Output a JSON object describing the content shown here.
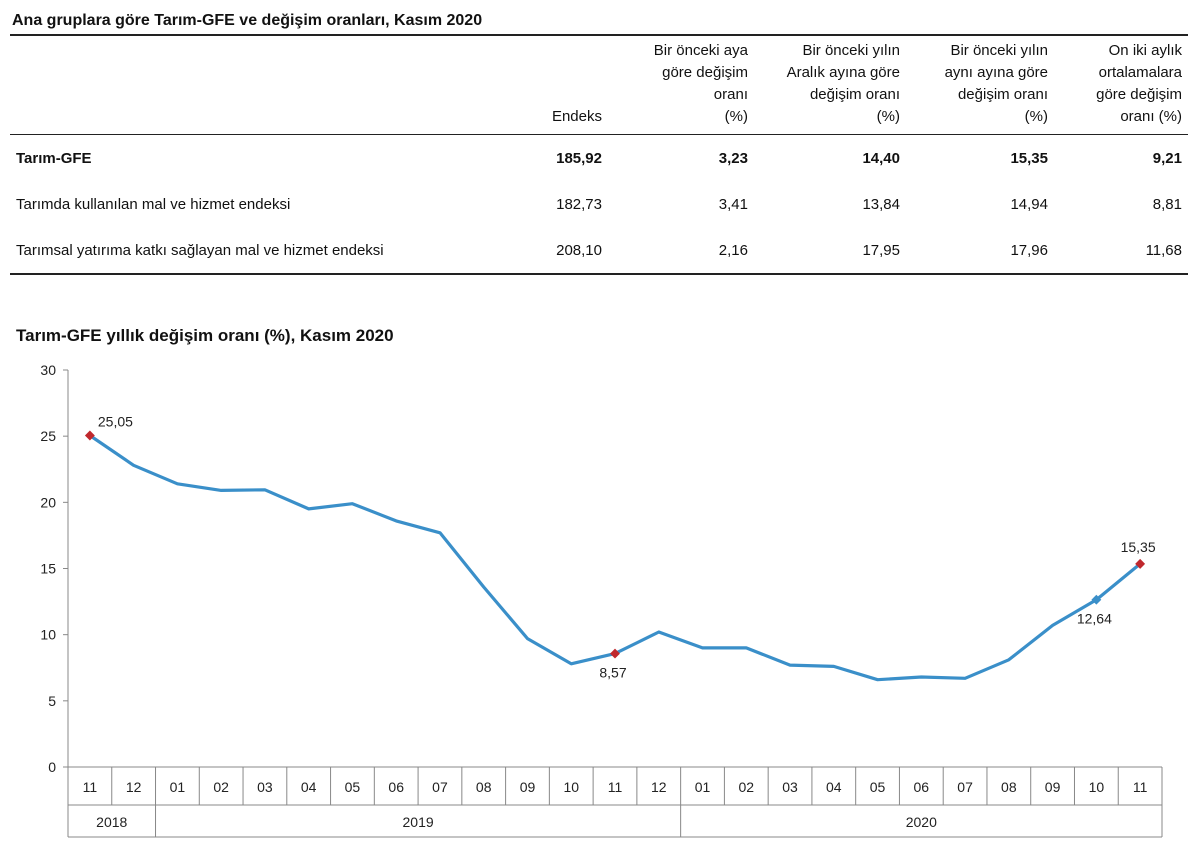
{
  "table": {
    "title": "Ana gruplara göre Tarım-GFE ve değişim oranları, Kasım 2020",
    "headers": [
      "",
      "Endeks",
      "Bir önceki aya\ngöre değişim\noranı\n(%)",
      "Bir önceki yılın\nAralık ayına göre\ndeğişim oranı\n(%)",
      "Bir önceki yılın\naynı ayına göre\ndeğişim oranı\n(%)",
      "On iki aylık\nortalamalara\ngöre değişim\noranı (%)"
    ],
    "rows": [
      [
        "Tarım-GFE",
        "185,92",
        "3,23",
        "14,40",
        "15,35",
        "9,21"
      ],
      [
        "Tarımda kullanılan mal ve hizmet endeksi",
        "182,73",
        "3,41",
        "13,84",
        "14,94",
        "8,81"
      ],
      [
        "Tarımsal yatırıma katkı sağlayan mal ve hizmet endeksi",
        "208,10",
        "2,16",
        "17,95",
        "17,96",
        "11,68"
      ]
    ]
  },
  "chart_title": "Tarım-GFE yıllık değişim oranı (%), Kasım 2020",
  "chart_data": {
    "type": "line",
    "title": "Tarım-GFE yıllık değişim oranı (%), Kasım 2020",
    "xlabel": "",
    "ylabel": "",
    "ylim": [
      0,
      30
    ],
    "yticks": [
      "0",
      "5",
      "10",
      "15",
      "20",
      "25",
      "30"
    ],
    "grid": false,
    "line_color": "#3a8fc9",
    "marker_color": "#c0282d",
    "categories": [
      "11",
      "12",
      "01",
      "02",
      "03",
      "04",
      "05",
      "06",
      "07",
      "08",
      "09",
      "10",
      "11",
      "12",
      "01",
      "02",
      "03",
      "04",
      "05",
      "06",
      "07",
      "08",
      "09",
      "10",
      "11"
    ],
    "years": [
      {
        "label": "2018",
        "start": 0,
        "end": 1
      },
      {
        "label": "2019",
        "start": 2,
        "end": 13
      },
      {
        "label": "2020",
        "start": 14,
        "end": 24
      }
    ],
    "series": [
      {
        "values": [
          25.05,
          22.8,
          21.4,
          20.9,
          20.95,
          19.5,
          19.9,
          18.6,
          17.7,
          13.6,
          9.7,
          7.8,
          8.57,
          10.2,
          9.0,
          9.0,
          7.7,
          7.6,
          6.6,
          6.8,
          6.7,
          8.1,
          10.7,
          12.64,
          15.35
        ]
      }
    ],
    "annotations": [
      {
        "index": 0,
        "text": "25,05",
        "pos": "above-right",
        "marker": "#c0282d"
      },
      {
        "index": 12,
        "text": "8,57",
        "pos": "below",
        "marker": "#c0282d"
      },
      {
        "index": 23,
        "text": "12,64",
        "pos": "below",
        "marker": "#3a8fc9"
      },
      {
        "index": 24,
        "text": "15,35",
        "pos": "above",
        "marker": "#c0282d"
      }
    ]
  }
}
